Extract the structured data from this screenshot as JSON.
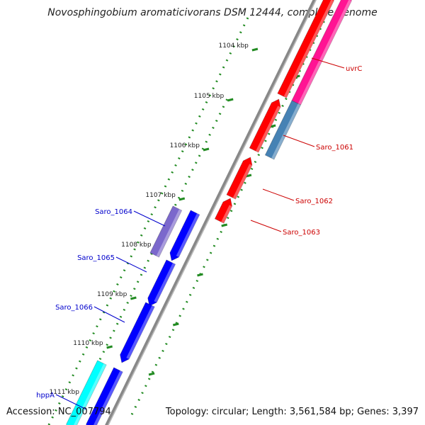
{
  "title": "Novosphingobium aromaticivorans DSM 12444, complete genome",
  "accession": "Accession: NC_007794",
  "summary": "Topology: circular; Length: 3,561,584 bp; Genes: 3,397",
  "ticks": [
    {
      "label": "1104 kbp"
    },
    {
      "label": "1105 kbp"
    },
    {
      "label": "1106 kbp"
    },
    {
      "label": "1107 kbp"
    },
    {
      "label": "1108 kbp"
    },
    {
      "label": "1109 kbp"
    },
    {
      "label": "1110 kbp"
    },
    {
      "label": "1111 kbp"
    }
  ],
  "genes": [
    {
      "name": "uvrC",
      "strand": "reverse",
      "color": "#ff1493"
    },
    {
      "name": "Saro_1061",
      "strand": "reverse",
      "color": "#4682b4"
    },
    {
      "name": "Saro_1062",
      "strand": "reverse",
      "color": "#ff0000"
    },
    {
      "name": "Saro_1063",
      "strand": "reverse",
      "color": "#ff0000"
    },
    {
      "name": "Saro_1064",
      "strand": "forward",
      "color": "#7b68cc"
    },
    {
      "name": "Saro_1065",
      "strand": "forward",
      "color": "#0000ff"
    },
    {
      "name": "Saro_1066",
      "strand": "forward",
      "color": "#0000ff"
    },
    {
      "name": "hppA",
      "strand": "forward",
      "color": "#00ffff"
    }
  ],
  "colors": {
    "backbone": "#888888",
    "tick": "#228b22",
    "forward_label": "#0000cc",
    "reverse_label": "#cc0000",
    "cds_forward": "#0000ff",
    "cds_reverse": "#ff0000"
  }
}
